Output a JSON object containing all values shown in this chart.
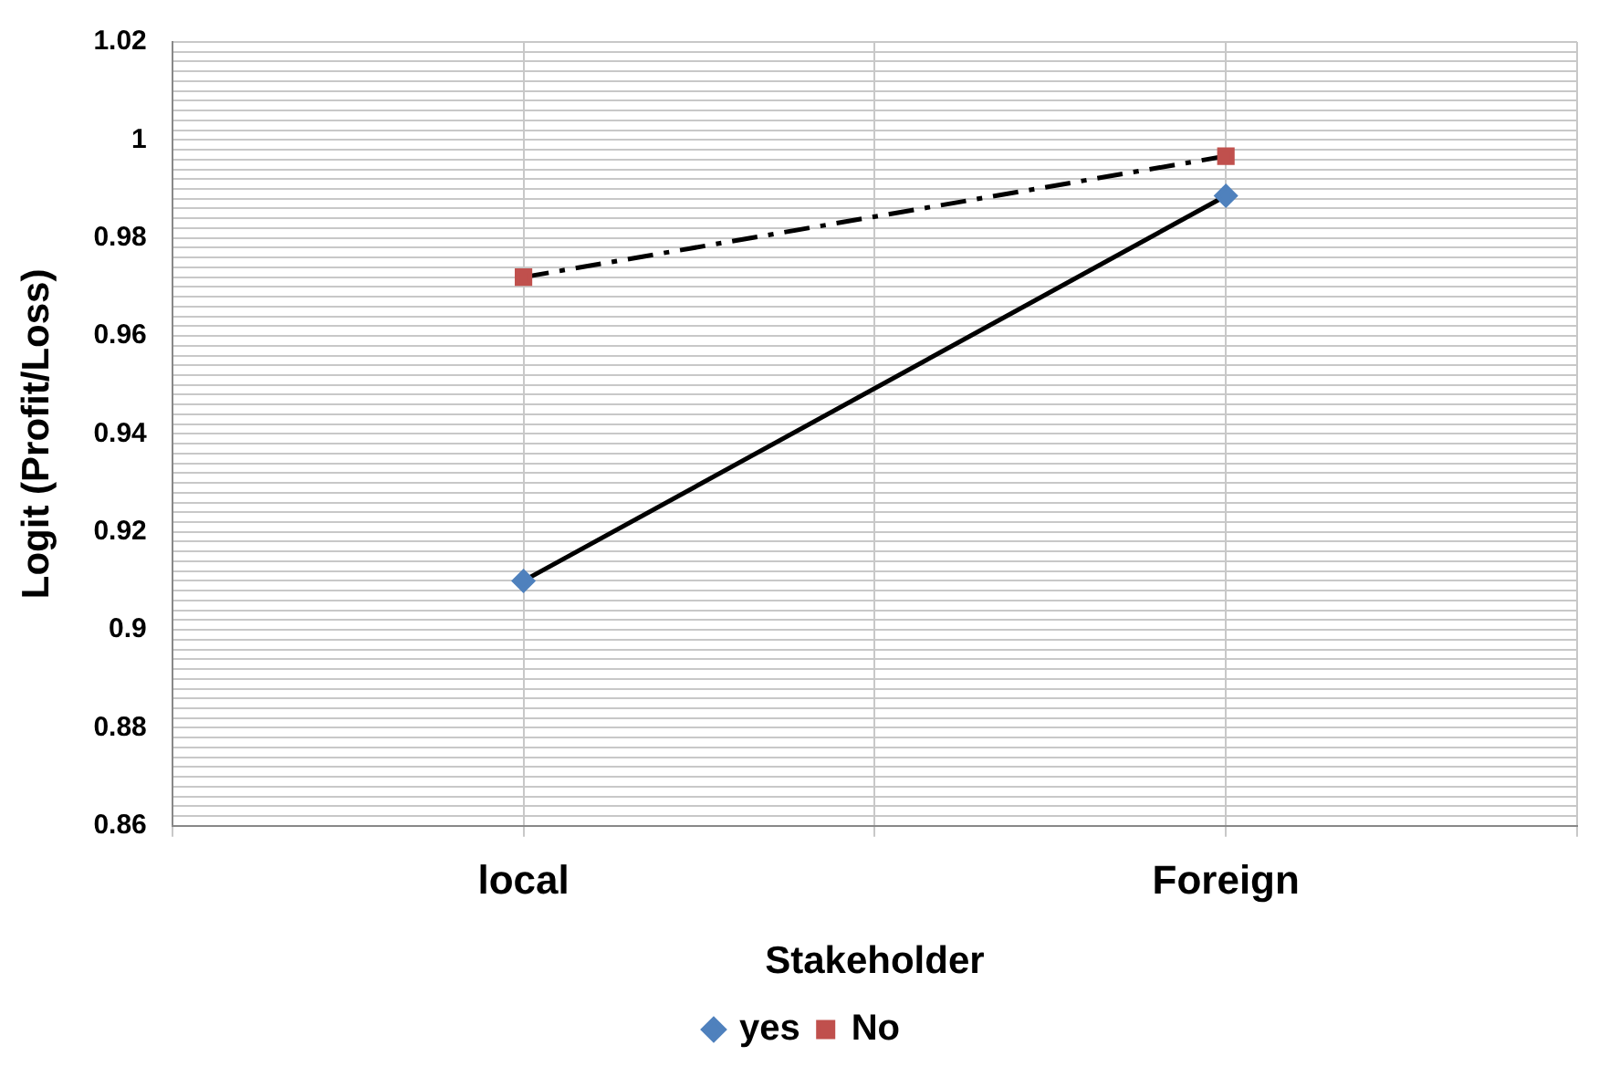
{
  "chart_data": {
    "type": "line",
    "xlabel": "Stakeholder",
    "ylabel": "Logit (Profit/Loss)",
    "categories": [
      null,
      "local",
      null,
      "Foreign",
      null
    ],
    "series": [
      {
        "name": "yes",
        "color": "#4f81bd",
        "values": [
          null,
          0.91,
          null,
          0.9886,
          null
        ],
        "marker": "diamond",
        "line_style": "solid"
      },
      {
        "name": "No",
        "color": "#c0504d",
        "values": [
          null,
          0.972,
          null,
          0.9967,
          null
        ],
        "marker": "square",
        "line_style": "dashed"
      }
    ],
    "ylim": [
      0.86,
      1.02
    ],
    "yticks": [
      0.86,
      {
        "value": 0.862,
        "label": null
      },
      {
        "value": 0.864,
        "label": null
      },
      {
        "value": 0.866,
        "label": null
      },
      {
        "value": 0.868,
        "label": null
      },
      {
        "value": 0.87,
        "label": null
      },
      {
        "value": 0.872,
        "label": null
      },
      {
        "value": 0.874,
        "label": null
      },
      {
        "value": 0.876,
        "label": null
      },
      {
        "value": 0.878,
        "label": null
      },
      0.88,
      {
        "value": 0.882,
        "label": null
      },
      {
        "value": 0.884,
        "label": null
      },
      {
        "value": 0.886,
        "label": null
      },
      {
        "value": 0.888,
        "label": null
      },
      {
        "value": 0.89,
        "label": null
      },
      {
        "value": 0.892,
        "label": null
      },
      {
        "value": 0.894,
        "label": null
      },
      {
        "value": 0.896,
        "label": null
      },
      {
        "value": 0.898,
        "label": null
      },
      0.9,
      {
        "value": 0.902,
        "label": null
      },
      {
        "value": 0.904,
        "label": null
      },
      {
        "value": 0.906,
        "label": null
      },
      {
        "value": 0.908,
        "label": null
      },
      {
        "value": 0.91,
        "label": null
      },
      {
        "value": 0.912,
        "label": null
      },
      {
        "value": 0.914,
        "label": null
      },
      {
        "value": 0.916,
        "label": null
      },
      {
        "value": 0.918,
        "label": null
      },
      0.92,
      {
        "value": 0.922,
        "label": null
      },
      {
        "value": 0.924,
        "label": null
      },
      {
        "value": 0.926,
        "label": null
      },
      {
        "value": 0.928,
        "label": null
      },
      {
        "value": 0.93,
        "label": null
      },
      {
        "value": 0.932,
        "label": null
      },
      {
        "value": 0.934,
        "label": null
      },
      {
        "value": 0.936,
        "label": null
      },
      {
        "value": 0.938,
        "label": null
      },
      0.94,
      {
        "value": 0.942,
        "label": null
      },
      {
        "value": 0.944,
        "label": null
      },
      {
        "value": 0.946,
        "label": null
      },
      {
        "value": 0.948,
        "label": null
      },
      {
        "value": 0.95,
        "label": null
      },
      {
        "value": 0.952,
        "label": null
      },
      {
        "value": 0.954,
        "label": null
      },
      {
        "value": 0.956,
        "label": null
      },
      {
        "value": 0.958,
        "label": null
      },
      0.96,
      {
        "value": 0.962,
        "label": null
      },
      {
        "value": 0.964,
        "label": null
      },
      {
        "value": 0.966,
        "label": null
      },
      {
        "value": 0.968,
        "label": null
      },
      {
        "value": 0.97,
        "label": null
      },
      {
        "value": 0.972,
        "label": null
      },
      {
        "value": 0.974,
        "label": null
      },
      {
        "value": 0.976,
        "label": null
      },
      {
        "value": 0.978,
        "label": null
      },
      0.98,
      {
        "value": 0.982,
        "label": null
      },
      {
        "value": 0.984,
        "label": null
      },
      {
        "value": 0.986,
        "label": null
      },
      {
        "value": 0.988,
        "label": null
      },
      {
        "value": 0.99,
        "label": null
      },
      {
        "value": 0.992,
        "label": null
      },
      {
        "value": 0.994,
        "label": null
      },
      {
        "value": 0.996,
        "label": null
      },
      {
        "value": 0.998,
        "label": null
      },
      1,
      {
        "value": 1.002,
        "label": null
      },
      {
        "value": 1.004,
        "label": null
      },
      {
        "value": 1.006,
        "label": null
      },
      {
        "value": 1.008,
        "label": null
      },
      {
        "value": 1.01,
        "label": null
      },
      {
        "value": 1.012,
        "label": null
      },
      {
        "value": 1.014,
        "label": null
      },
      {
        "value": 1.016,
        "label": null
      },
      {
        "value": 1.018,
        "label": null
      },
      1.02
    ],
    "grid": true,
    "legend": "bottom"
  }
}
